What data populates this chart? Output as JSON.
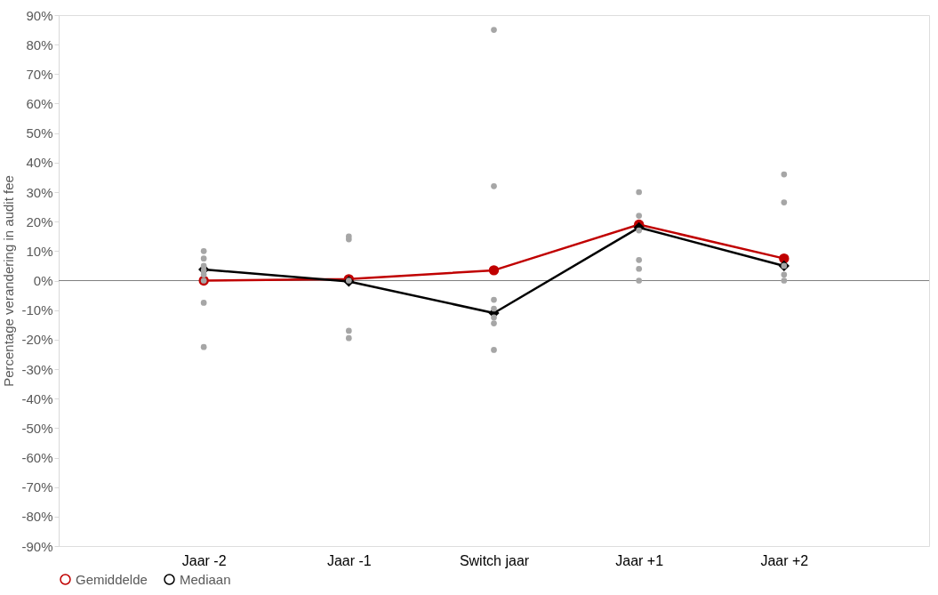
{
  "chart_data": {
    "type": "line",
    "categories": [
      "Jaar -2",
      "Jaar -1",
      "Switch jaar",
      "Jaar +1",
      "Jaar +2"
    ],
    "ylabel": "Percentage verandering in audit fee",
    "ylim": [
      -90,
      90
    ],
    "yticks": [
      {
        "value": -90,
        "label": "-90%"
      },
      {
        "value": -80,
        "label": "-80%"
      },
      {
        "value": -70,
        "label": "-70%"
      },
      {
        "value": -60,
        "label": "-60%"
      },
      {
        "value": -50,
        "label": "-50%"
      },
      {
        "value": -40,
        "label": "-40%"
      },
      {
        "value": -30,
        "label": "-30%"
      },
      {
        "value": -20,
        "label": "-20%"
      },
      {
        "value": -10,
        "label": "-10%"
      },
      {
        "value": 0,
        "label": "0%"
      },
      {
        "value": 10,
        "label": "10%"
      },
      {
        "value": 20,
        "label": "20%"
      },
      {
        "value": 30,
        "label": "30%"
      },
      {
        "value": 40,
        "label": "40%"
      },
      {
        "value": 50,
        "label": "50%"
      },
      {
        "value": 60,
        "label": "60%"
      },
      {
        "value": 70,
        "label": "70%"
      },
      {
        "value": 80,
        "label": "80%"
      },
      {
        "value": 90,
        "label": "90%"
      }
    ],
    "series": [
      {
        "type": "scatter",
        "color": "#a6a6a6",
        "marker": "circle",
        "x": [
          "Jaar -2",
          "Jaar -2",
          "Jaar -2",
          "Jaar -2",
          "Jaar -2",
          "Jaar -2",
          "Jaar -2",
          "Jaar -2",
          "Jaar -1",
          "Jaar -1",
          "Jaar -1",
          "Jaar -1",
          "Jaar -1",
          "Switch jaar",
          "Switch jaar",
          "Switch jaar",
          "Switch jaar",
          "Switch jaar",
          "Switch jaar",
          "Switch jaar",
          "Jaar +1",
          "Jaar +1",
          "Jaar +1",
          "Jaar +1",
          "Jaar +1",
          "Jaar +1",
          "Jaar +2",
          "Jaar +2",
          "Jaar +2",
          "Jaar +2",
          "Jaar +2"
        ],
        "values": [
          10,
          7.5,
          5,
          3.5,
          2,
          0,
          -7.5,
          -22.5,
          15,
          14,
          0,
          -17,
          -19.5,
          85,
          32,
          -6.5,
          -9.5,
          -12.5,
          -14.5,
          -23.5,
          30,
          22,
          17,
          7,
          4,
          0,
          36,
          26.5,
          5,
          2,
          0
        ]
      },
      {
        "name": "Gemiddelde",
        "color": "#c00000",
        "marker": "circle",
        "values": [
          0,
          0.5,
          3.5,
          19,
          7.5
        ]
      },
      {
        "name": "Mediaan",
        "color": "#000000",
        "marker": "diamond",
        "values": [
          3.8,
          -0.3,
          -11,
          18,
          5
        ]
      }
    ],
    "ref_lines": [
      {
        "axis": "y",
        "value": 0,
        "color": "#808080"
      }
    ],
    "grid": false,
    "legend": "bottom"
  }
}
